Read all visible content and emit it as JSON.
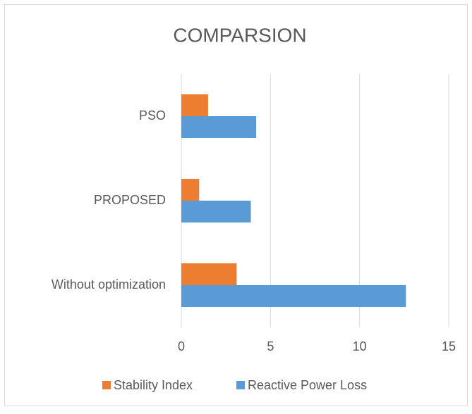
{
  "chart_data": {
    "type": "barh",
    "title": "COMPARSION",
    "categories": [
      "Without optimization",
      "PROPOSED",
      "PSO"
    ],
    "series": [
      {
        "name": "Stability Index",
        "color": "#ed7d31",
        "values": [
          3.1,
          1.0,
          1.5
        ]
      },
      {
        "name": "Reactive Power Loss",
        "color": "#5b9bd5",
        "values": [
          12.6,
          3.9,
          4.2
        ]
      }
    ],
    "xlim": [
      0,
      15
    ],
    "xticks": [
      0,
      5,
      10,
      15
    ],
    "grid": true,
    "legend": "bottom"
  }
}
